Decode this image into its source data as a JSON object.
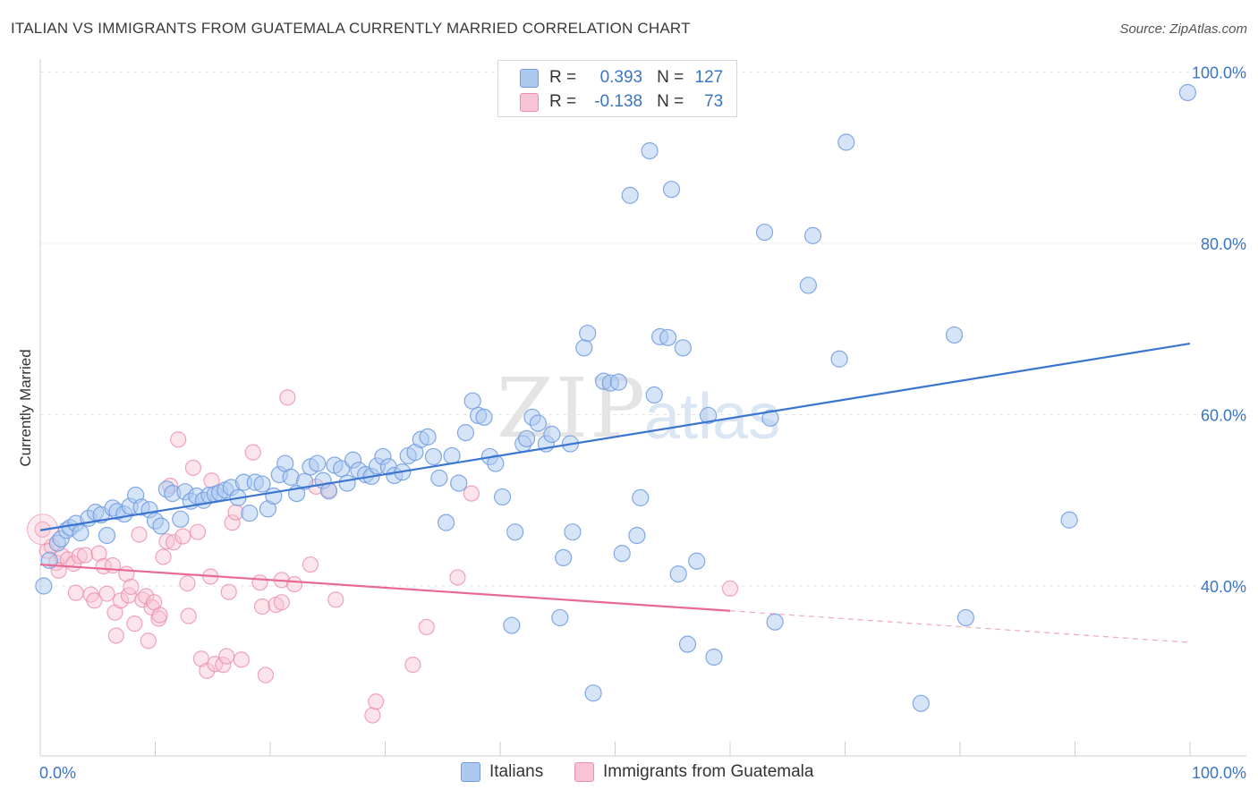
{
  "header": {
    "title": "ITALIAN VS IMMIGRANTS FROM GUATEMALA CURRENTLY MARRIED CORRELATION CHART",
    "source": "Source: ZipAtlas.com"
  },
  "watermark": {
    "zip": "ZIP",
    "atlas": "atlas"
  },
  "legend": {
    "rows": [
      {
        "r_label": "R =",
        "r_value": "0.393",
        "n_label": "N =",
        "n_value": "127",
        "color": "#6f9ae0"
      },
      {
        "r_label": "R =",
        "r_value": "-0.138",
        "n_label": "N =",
        "n_value": "73",
        "color": "#eb8fad"
      }
    ]
  },
  "bottom_legend": {
    "italians": "Italians",
    "guatemala": "Immigrants from Guatemala"
  },
  "chart_data": {
    "type": "scatter",
    "xlabel": "",
    "ylabel": "Currently Married",
    "x_tick_labels": [
      "0.0%",
      "100.0%"
    ],
    "y_tick_labels": [
      "40.0%",
      "60.0%",
      "80.0%",
      "100.0%"
    ],
    "y_ticks": [
      40,
      60,
      80,
      100
    ],
    "xlim": [
      0,
      100
    ],
    "ylim": [
      20,
      102
    ],
    "grid": true,
    "colors": {
      "blue": "#6f9ae0",
      "blue_fill": "#aec9f0",
      "blue_line": "#3a75d0",
      "pink": "#eb8fad",
      "pink_fill": "#f8c4d3",
      "pink_line": "#e86a93",
      "axis_text": "#3a75c4"
    },
    "series": [
      {
        "name": "Italians",
        "trend": {
          "x": [
            0,
            100
          ],
          "y": [
            46.5,
            68.3
          ]
        },
        "points": [
          [
            0.3,
            40.0
          ],
          [
            0.8,
            43.0
          ],
          [
            1.5,
            45.0
          ],
          [
            1.8,
            45.5
          ],
          [
            2.3,
            46.5
          ],
          [
            2.6,
            46.8
          ],
          [
            3.1,
            47.3
          ],
          [
            3.5,
            46.2
          ],
          [
            4.2,
            47.9
          ],
          [
            4.8,
            48.6
          ],
          [
            5.3,
            48.3
          ],
          [
            5.8,
            45.9
          ],
          [
            6.3,
            49.1
          ],
          [
            6.7,
            48.7
          ],
          [
            7.3,
            48.4
          ],
          [
            7.8,
            49.3
          ],
          [
            8.3,
            50.6
          ],
          [
            8.8,
            49.2
          ],
          [
            9.5,
            48.9
          ],
          [
            10.0,
            47.6
          ],
          [
            10.5,
            47.0
          ],
          [
            11.0,
            51.3
          ],
          [
            11.5,
            50.8
          ],
          [
            12.2,
            47.8
          ],
          [
            12.6,
            51.0
          ],
          [
            13.1,
            49.9
          ],
          [
            13.6,
            50.5
          ],
          [
            14.2,
            50.0
          ],
          [
            14.7,
            50.6
          ],
          [
            15.2,
            50.7
          ],
          [
            15.6,
            50.9
          ],
          [
            16.1,
            51.2
          ],
          [
            16.6,
            51.5
          ],
          [
            17.2,
            50.3
          ],
          [
            17.7,
            52.1
          ],
          [
            18.2,
            48.5
          ],
          [
            18.7,
            52.1
          ],
          [
            19.3,
            51.9
          ],
          [
            19.8,
            49.0
          ],
          [
            20.3,
            50.5
          ],
          [
            20.8,
            53.0
          ],
          [
            21.3,
            54.3
          ],
          [
            21.8,
            52.7
          ],
          [
            22.3,
            50.8
          ],
          [
            23.0,
            52.2
          ],
          [
            23.5,
            53.9
          ],
          [
            24.1,
            54.3
          ],
          [
            24.6,
            52.3
          ],
          [
            25.1,
            51.1
          ],
          [
            25.6,
            54.1
          ],
          [
            26.2,
            53.7
          ],
          [
            26.7,
            52.0
          ],
          [
            27.2,
            54.7
          ],
          [
            27.7,
            53.5
          ],
          [
            28.3,
            53.0
          ],
          [
            28.8,
            52.8
          ],
          [
            29.3,
            54.0
          ],
          [
            29.8,
            55.1
          ],
          [
            30.3,
            53.9
          ],
          [
            30.8,
            52.9
          ],
          [
            31.5,
            53.3
          ],
          [
            32.0,
            55.2
          ],
          [
            32.6,
            55.6
          ],
          [
            33.1,
            57.1
          ],
          [
            33.7,
            57.4
          ],
          [
            34.2,
            55.1
          ],
          [
            34.7,
            52.6
          ],
          [
            35.3,
            47.4
          ],
          [
            35.8,
            55.2
          ],
          [
            36.4,
            52.0
          ],
          [
            37.0,
            57.9
          ],
          [
            37.6,
            61.6
          ],
          [
            38.1,
            59.9
          ],
          [
            38.6,
            59.7
          ],
          [
            39.1,
            55.1
          ],
          [
            39.6,
            54.3
          ],
          [
            40.2,
            50.4
          ],
          [
            41.0,
            35.4
          ],
          [
            41.3,
            46.3
          ],
          [
            42.0,
            56.6
          ],
          [
            42.3,
            57.2
          ],
          [
            42.8,
            59.7
          ],
          [
            43.3,
            59.0
          ],
          [
            44.0,
            56.6
          ],
          [
            44.5,
            57.7
          ],
          [
            45.2,
            36.3
          ],
          [
            45.5,
            43.3
          ],
          [
            46.1,
            56.6
          ],
          [
            46.3,
            46.3
          ],
          [
            47.3,
            67.8
          ],
          [
            47.6,
            69.5
          ],
          [
            48.1,
            27.5
          ],
          [
            49.0,
            63.9
          ],
          [
            49.6,
            63.7
          ],
          [
            50.3,
            63.8
          ],
          [
            50.6,
            43.8
          ],
          [
            51.3,
            85.6
          ],
          [
            51.9,
            45.9
          ],
          [
            52.2,
            50.3
          ],
          [
            53.0,
            90.8
          ],
          [
            53.4,
            62.3
          ],
          [
            53.9,
            69.1
          ],
          [
            54.6,
            69.0
          ],
          [
            54.9,
            86.3
          ],
          [
            55.9,
            67.8
          ],
          [
            55.5,
            41.4
          ],
          [
            56.3,
            33.2
          ],
          [
            57.1,
            42.9
          ],
          [
            58.1,
            59.9
          ],
          [
            58.6,
            31.7
          ],
          [
            63.5,
            59.6
          ],
          [
            63.9,
            35.8
          ],
          [
            63.0,
            81.3
          ],
          [
            66.8,
            75.1
          ],
          [
            67.2,
            80.9
          ],
          [
            70.1,
            91.8
          ],
          [
            69.5,
            66.5
          ],
          [
            76.6,
            26.3
          ],
          [
            79.5,
            69.3
          ],
          [
            80.5,
            36.3
          ],
          [
            89.5,
            47.7
          ],
          [
            99.8,
            97.6
          ]
        ]
      },
      {
        "name": "Immigrants from Guatemala",
        "trend": {
          "x": [
            0,
            60
          ],
          "y": [
            42.5,
            37.1
          ]
        },
        "trend_dashed": {
          "x": [
            60,
            100
          ],
          "y": [
            37.1,
            33.4
          ]
        },
        "points": [
          [
            0.2,
            46.6
          ],
          [
            0.6,
            44.1
          ],
          [
            1.0,
            44.6
          ],
          [
            1.4,
            42.7
          ],
          [
            1.6,
            41.8
          ],
          [
            1.9,
            43.5
          ],
          [
            2.4,
            43.1
          ],
          [
            2.9,
            42.6
          ],
          [
            3.1,
            39.2
          ],
          [
            3.4,
            43.5
          ],
          [
            3.9,
            43.6
          ],
          [
            4.4,
            39.0
          ],
          [
            4.7,
            38.3
          ],
          [
            5.1,
            43.8
          ],
          [
            5.5,
            42.3
          ],
          [
            5.8,
            39.1
          ],
          [
            6.3,
            42.4
          ],
          [
            6.5,
            36.9
          ],
          [
            6.6,
            34.2
          ],
          [
            7.0,
            38.3
          ],
          [
            7.5,
            41.4
          ],
          [
            7.7,
            38.9
          ],
          [
            7.9,
            39.9
          ],
          [
            8.2,
            35.6
          ],
          [
            8.6,
            46.0
          ],
          [
            8.9,
            38.4
          ],
          [
            9.2,
            38.8
          ],
          [
            9.4,
            33.6
          ],
          [
            9.7,
            37.5
          ],
          [
            9.9,
            38.1
          ],
          [
            10.3,
            36.2
          ],
          [
            10.4,
            36.6
          ],
          [
            10.7,
            43.4
          ],
          [
            11.0,
            45.2
          ],
          [
            11.3,
            51.7
          ],
          [
            11.6,
            45.1
          ],
          [
            12.0,
            57.1
          ],
          [
            12.4,
            45.8
          ],
          [
            12.9,
            36.5
          ],
          [
            12.8,
            40.3
          ],
          [
            13.3,
            53.8
          ],
          [
            13.7,
            46.3
          ],
          [
            14.0,
            31.5
          ],
          [
            14.5,
            30.1
          ],
          [
            14.8,
            41.1
          ],
          [
            14.9,
            52.3
          ],
          [
            15.2,
            30.9
          ],
          [
            15.9,
            30.8
          ],
          [
            16.2,
            31.8
          ],
          [
            16.4,
            39.3
          ],
          [
            16.7,
            47.4
          ],
          [
            17.0,
            48.6
          ],
          [
            17.5,
            31.4
          ],
          [
            18.5,
            55.6
          ],
          [
            19.1,
            40.4
          ],
          [
            19.3,
            37.6
          ],
          [
            19.6,
            29.6
          ],
          [
            20.5,
            37.8
          ],
          [
            21.0,
            38.1
          ],
          [
            21.0,
            40.7
          ],
          [
            21.5,
            62.0
          ],
          [
            22.1,
            40.2
          ],
          [
            23.5,
            42.5
          ],
          [
            24.0,
            51.6
          ],
          [
            25.1,
            51.2
          ],
          [
            25.7,
            38.4
          ],
          [
            28.9,
            24.9
          ],
          [
            29.2,
            26.5
          ],
          [
            32.4,
            30.8
          ],
          [
            33.6,
            35.2
          ],
          [
            36.3,
            41.0
          ],
          [
            37.5,
            50.8
          ],
          [
            60.0,
            39.7
          ]
        ]
      }
    ]
  }
}
